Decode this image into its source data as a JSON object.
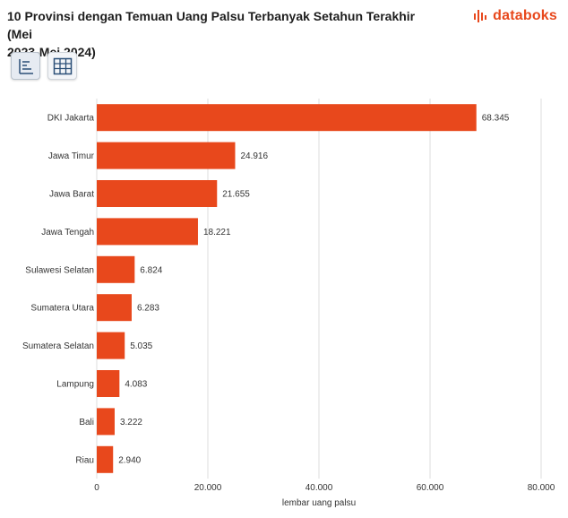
{
  "header": {
    "title_line1": "10 Provinsi dengan Temuan Uang Palsu Terbanyak Setahun Terakhir (Mei",
    "title_line2": "2023-Mei 2024)",
    "brand": "databoks"
  },
  "toolbar": {
    "chart_view_icon": "bar-chart-icon",
    "table_view_icon": "table-grid-icon"
  },
  "colors": {
    "bar": "#e8481c",
    "grid": "#dcdcdc",
    "brand": "#e8481c",
    "icon": "#2b4f77"
  },
  "chart_data": {
    "type": "bar",
    "orientation": "horizontal",
    "categories": [
      "DKI Jakarta",
      "Jawa Timur",
      "Jawa Barat",
      "Jawa Tengah",
      "Sulawesi Selatan",
      "Sumatera Utara",
      "Sumatera Selatan",
      "Lampung",
      "Bali",
      "Riau"
    ],
    "values": [
      68345,
      24916,
      21655,
      18221,
      6824,
      6283,
      5035,
      4083,
      3222,
      2940
    ],
    "value_labels": [
      "68.345",
      "24.916",
      "21.655",
      "18.221",
      "6.824",
      "6.283",
      "5.035",
      "4.083",
      "3.222",
      "2.940"
    ],
    "xlim": [
      0,
      80000
    ],
    "x_ticks": [
      0,
      20000,
      40000,
      60000,
      80000
    ],
    "x_tick_labels": [
      "0",
      "20.000",
      "40.000",
      "60.000",
      "80.000"
    ],
    "xlabel": "lembar uang palsu",
    "ylabel": "",
    "grid": true,
    "legend": "none"
  }
}
